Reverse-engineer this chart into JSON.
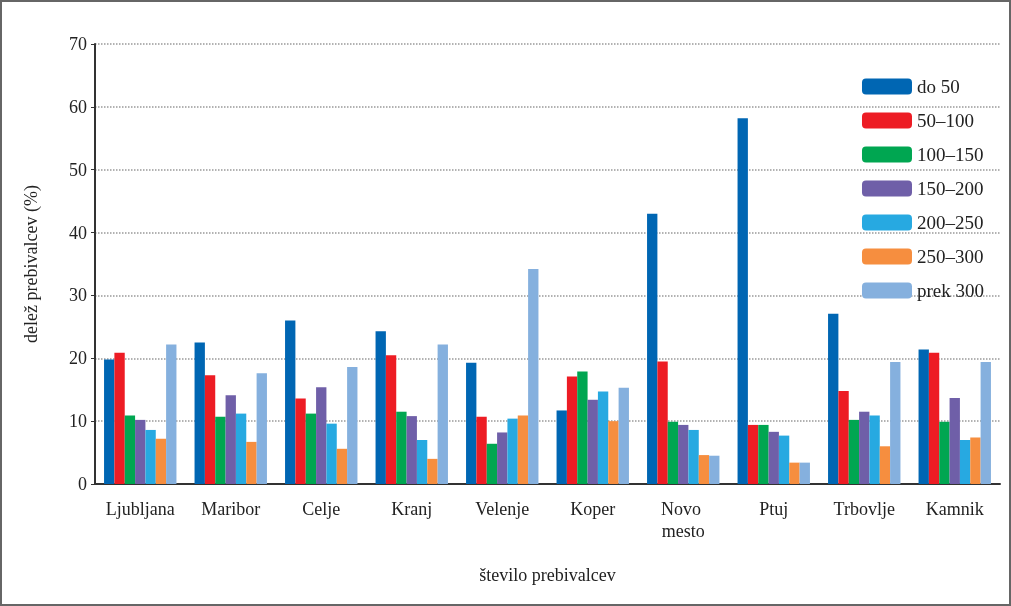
{
  "chart_data": {
    "type": "bar",
    "xlabel": "število prebivalcev",
    "ylabel": "delež prebivalcev (%)",
    "categories": [
      "Ljubljana",
      "Maribor",
      "Celje",
      "Kranj",
      "Velenje",
      "Koper",
      "Novo mesto",
      "Ptuj",
      "Trbovlje",
      "Kamnik"
    ],
    "series": [
      {
        "name": "do 50",
        "color": "#0066b3",
        "values": [
          19.8,
          22.5,
          26.0,
          24.3,
          19.3,
          11.7,
          43.0,
          58.2,
          27.1,
          21.4
        ]
      },
      {
        "name": "50–100",
        "color": "#ed1c24",
        "values": [
          20.9,
          17.3,
          13.6,
          20.5,
          10.7,
          17.1,
          19.5,
          9.4,
          14.8,
          20.9
        ]
      },
      {
        "name": "100–150",
        "color": "#00a651",
        "values": [
          10.9,
          10.7,
          11.2,
          11.5,
          6.4,
          17.9,
          9.9,
          9.4,
          10.2,
          9.9
        ]
      },
      {
        "name": "150–200",
        "color": "#6f5fa8",
        "values": [
          10.2,
          14.1,
          15.4,
          10.8,
          8.2,
          13.4,
          9.4,
          8.3,
          11.5,
          13.7
        ]
      },
      {
        "name": "200–250",
        "color": "#27a9e1",
        "values": [
          8.6,
          11.2,
          9.6,
          7.0,
          10.4,
          14.7,
          8.6,
          7.7,
          10.9,
          7.0
        ]
      },
      {
        "name": "250–300",
        "color": "#f68e3f",
        "values": [
          7.2,
          6.7,
          5.6,
          4.0,
          10.9,
          10.0,
          4.6,
          3.4,
          6.0,
          7.4
        ]
      },
      {
        "name": "prek 300",
        "color": "#85b0de",
        "values": [
          22.2,
          17.6,
          18.6,
          22.2,
          34.2,
          15.3,
          4.5,
          3.4,
          19.4,
          19.4
        ]
      }
    ],
    "ylim": [
      0,
      70
    ],
    "yticks": [
      0,
      10,
      20,
      30,
      40,
      50,
      60,
      70
    ],
    "grid": "y",
    "legend": "top right"
  }
}
